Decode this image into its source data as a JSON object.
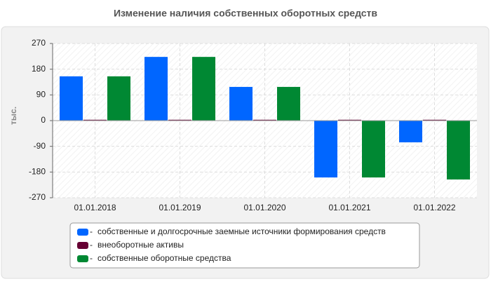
{
  "chart_data": {
    "type": "bar",
    "title": "Изменение наличия собственных оборотных средств",
    "y_label": "тыс.",
    "categories": [
      "01.01.2018",
      "01.01.2019",
      "01.01.2020",
      "01.01.2021",
      "01.01.2022"
    ],
    "series": [
      {
        "name": "собственные и долгосрочные заемные источники формирования средств",
        "color": "#0066ff",
        "values": [
          155,
          223,
          118,
          -199,
          -76
        ]
      },
      {
        "name": "внеоборотные активы",
        "color": "#660033",
        "values": [
          3,
          3,
          3,
          3,
          3
        ]
      },
      {
        "name": "собственные оборотные средства",
        "color": "#008833",
        "values": [
          155,
          223,
          118,
          -199,
          -206
        ]
      }
    ],
    "ylim": [
      -270,
      270
    ],
    "yticks": [
      -270,
      -180,
      -90,
      0,
      90,
      180,
      270
    ],
    "grid": true
  }
}
